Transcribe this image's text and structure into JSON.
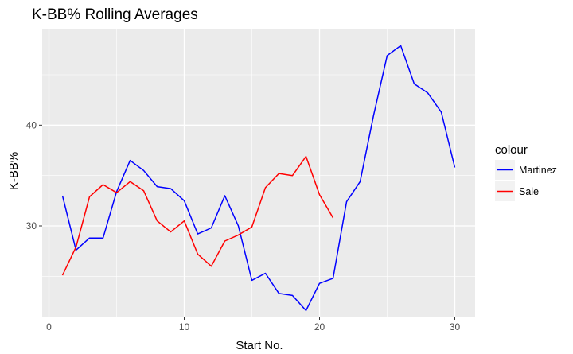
{
  "chart_data": {
    "type": "line",
    "title": "K-BB% Rolling Averages",
    "xlabel": "Start No.",
    "ylabel": "K-BB%",
    "xlim": [
      -0.5,
      31.5
    ],
    "ylim": [
      21.0,
      49.5
    ],
    "x_ticks": [
      0,
      10,
      20,
      30
    ],
    "x_tick_labels": [
      "0",
      "10",
      "20",
      "30"
    ],
    "y_ticks": [
      30,
      40
    ],
    "y_tick_labels": [
      "30",
      "40"
    ],
    "grid": true,
    "legend": {
      "title": "colour",
      "placement": "right"
    },
    "series": [
      {
        "name": "Martinez",
        "color": "#0000ff",
        "x": [
          1,
          2,
          3,
          4,
          5,
          6,
          7,
          8,
          9,
          10,
          11,
          12,
          13,
          14,
          15,
          16,
          17,
          18,
          19,
          20,
          21,
          22,
          23,
          24,
          25,
          26,
          27,
          28,
          29,
          30
        ],
        "y": [
          33.0,
          27.6,
          28.8,
          28.8,
          33.4,
          36.5,
          35.5,
          33.9,
          33.7,
          32.5,
          29.2,
          29.8,
          33.0,
          30.0,
          24.6,
          25.3,
          23.3,
          23.1,
          21.6,
          24.3,
          24.8,
          32.4,
          34.4,
          41.0,
          46.9,
          47.9,
          44.1,
          43.2,
          41.3,
          35.8
        ]
      },
      {
        "name": "Sale",
        "color": "#ff0000",
        "x": [
          1,
          2,
          3,
          4,
          5,
          6,
          7,
          8,
          9,
          10,
          11,
          12,
          13,
          14,
          15,
          16,
          17,
          18,
          19,
          20,
          21
        ],
        "y": [
          25.1,
          27.9,
          32.9,
          34.1,
          33.3,
          34.4,
          33.5,
          30.5,
          29.4,
          30.5,
          27.2,
          26.0,
          28.5,
          29.1,
          29.9,
          33.8,
          35.2,
          35.0,
          36.9,
          33.1,
          30.8
        ]
      }
    ]
  }
}
